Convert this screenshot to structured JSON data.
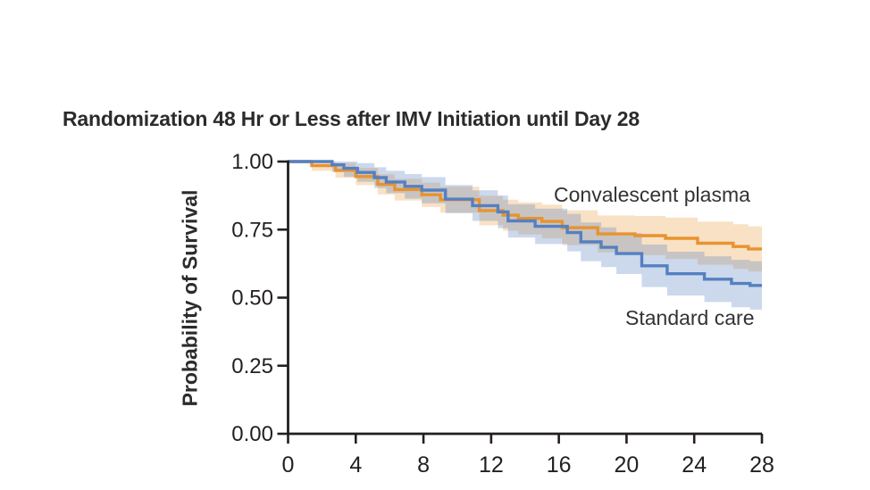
{
  "chart_data": {
    "type": "line",
    "subtype": "kaplan-meier-step-with-confidence-bands",
    "title": "Randomization 48 Hr or Less after IMV Initiation until Day 28",
    "xlabel": "",
    "ylabel": "Probability of Survival",
    "xlim": [
      0,
      28
    ],
    "ylim": [
      0,
      1
    ],
    "grid": false,
    "axis_color": "#231f20",
    "x_ticks": [
      {
        "v": 0,
        "label": "0"
      },
      {
        "v": 4,
        "label": "4"
      },
      {
        "v": 8,
        "label": "8"
      },
      {
        "v": 12,
        "label": "12"
      },
      {
        "v": 16,
        "label": "16"
      },
      {
        "v": 20,
        "label": "20"
      },
      {
        "v": 24,
        "label": "24"
      },
      {
        "v": 28,
        "label": "28"
      }
    ],
    "y_ticks": [
      {
        "v": 1.0,
        "label": "1.00"
      },
      {
        "v": 0.75,
        "label": "0.75"
      },
      {
        "v": 0.5,
        "label": "0.50"
      },
      {
        "v": 0.25,
        "label": "0.25"
      },
      {
        "v": 0.0,
        "label": "0.00"
      }
    ],
    "legend_position": "inline-annotations",
    "series": [
      {
        "name": "Convalescent plasma",
        "slug": "convalescent-plasma",
        "color": "#E8932F",
        "band_color": "rgba(232,147,47,0.28)",
        "point_format": [
          "day",
          "survival",
          "ci_lower",
          "ci_upper"
        ],
        "points": [
          [
            0,
            1.0,
            1.0,
            1.0
          ],
          [
            1.4,
            0.985,
            0.966,
            1.0
          ],
          [
            2.8,
            0.968,
            0.941,
            0.995
          ],
          [
            4.0,
            0.945,
            0.913,
            0.977
          ],
          [
            5.3,
            0.916,
            0.879,
            0.953
          ],
          [
            6.3,
            0.897,
            0.857,
            0.937
          ],
          [
            7.9,
            0.878,
            0.833,
            0.923
          ],
          [
            9.0,
            0.86,
            0.812,
            0.908
          ],
          [
            11.3,
            0.82,
            0.766,
            0.874
          ],
          [
            12.7,
            0.803,
            0.746,
            0.86
          ],
          [
            13.6,
            0.791,
            0.732,
            0.85
          ],
          [
            15.0,
            0.78,
            0.718,
            0.842
          ],
          [
            16.2,
            0.757,
            0.693,
            0.821
          ],
          [
            18.3,
            0.734,
            0.666,
            0.802
          ],
          [
            20.5,
            0.728,
            0.656,
            0.8
          ],
          [
            22.3,
            0.718,
            0.642,
            0.794
          ],
          [
            24.2,
            0.7,
            0.621,
            0.779
          ],
          [
            26.3,
            0.688,
            0.606,
            0.77
          ],
          [
            27.2,
            0.679,
            0.596,
            0.762
          ]
        ]
      },
      {
        "name": "Standard care",
        "slug": "standard-care",
        "color": "#5580C1",
        "band_color": "rgba(85,128,193,0.30)",
        "point_format": [
          "day",
          "survival",
          "ci_lower",
          "ci_upper"
        ],
        "points": [
          [
            0,
            1.0,
            1.0,
            1.0
          ],
          [
            2.6,
            0.988,
            0.961,
            1.0
          ],
          [
            3.3,
            0.975,
            0.944,
            1.0
          ],
          [
            4.1,
            0.96,
            0.926,
            0.994
          ],
          [
            5.1,
            0.941,
            0.903,
            0.979
          ],
          [
            5.8,
            0.925,
            0.884,
            0.966
          ],
          [
            6.9,
            0.909,
            0.864,
            0.954
          ],
          [
            7.9,
            0.895,
            0.847,
            0.943
          ],
          [
            9.3,
            0.862,
            0.81,
            0.914
          ],
          [
            10.9,
            0.838,
            0.782,
            0.894
          ],
          [
            12.4,
            0.815,
            0.755,
            0.875
          ],
          [
            13.0,
            0.782,
            0.721,
            0.843
          ],
          [
            14.6,
            0.762,
            0.697,
            0.827
          ],
          [
            16.5,
            0.739,
            0.67,
            0.808
          ],
          [
            17.3,
            0.705,
            0.634,
            0.776
          ],
          [
            18.5,
            0.685,
            0.612,
            0.758
          ],
          [
            19.4,
            0.662,
            0.587,
            0.737
          ],
          [
            20.9,
            0.617,
            0.539,
            0.695
          ],
          [
            22.4,
            0.588,
            0.508,
            0.669
          ],
          [
            24.6,
            0.568,
            0.484,
            0.652
          ],
          [
            26.2,
            0.552,
            0.465,
            0.639
          ],
          [
            27.3,
            0.545,
            0.456,
            0.634
          ]
        ]
      }
    ]
  }
}
